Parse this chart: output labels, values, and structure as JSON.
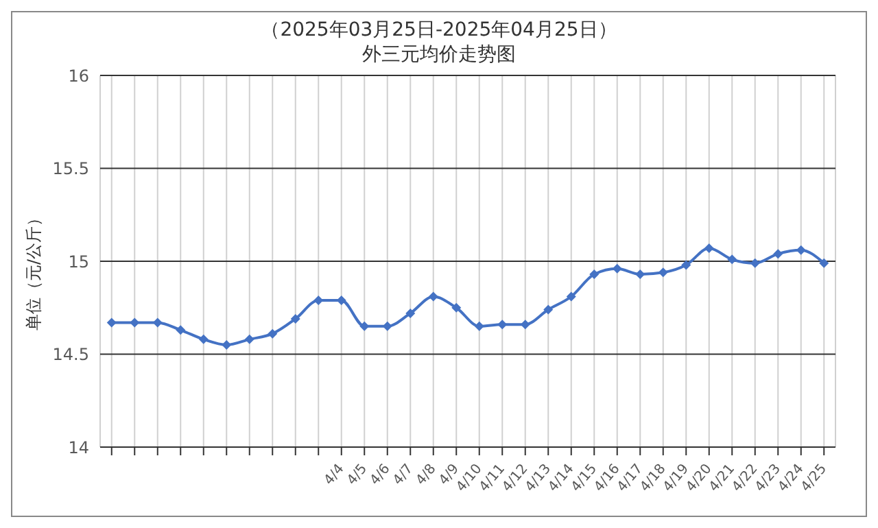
{
  "chart_data": {
    "type": "line",
    "title": "（2025年03月25日-2025年04月25日）",
    "subtitle": "外三元均价走势图",
    "ylabel": "单位（元/公斤）",
    "categories": [
      null,
      null,
      null,
      null,
      null,
      null,
      null,
      null,
      null,
      null,
      "4/4",
      "4/5",
      "4/6",
      "4/7",
      "4/8",
      "4/9",
      "4/10",
      "4/11",
      "4/12",
      "4/13",
      "4/14",
      "4/15",
      "4/16",
      "4/17",
      "4/18",
      "4/19",
      "4/20",
      "4/21",
      "4/22",
      "4/23",
      "4/24",
      "4/25"
    ],
    "series": [
      {
        "color": "#4472c4",
        "values": [
          14.67,
          14.67,
          14.67,
          14.63,
          14.58,
          14.55,
          14.58,
          14.61,
          14.69,
          14.79,
          14.79,
          14.65,
          14.65,
          14.72,
          14.81,
          14.75,
          14.65,
          14.66,
          14.66,
          14.74,
          14.81,
          14.93,
          14.96,
          14.93,
          14.94,
          14.98,
          15.07,
          15.01,
          14.99,
          15.04,
          15.06,
          14.99
        ]
      }
    ],
    "ylim": [
      14,
      16
    ],
    "yticks": [
      14,
      14.5,
      15,
      15.5,
      16
    ],
    "grid": true,
    "legend": false,
    "marker": "diamond",
    "line_style": "solid"
  }
}
